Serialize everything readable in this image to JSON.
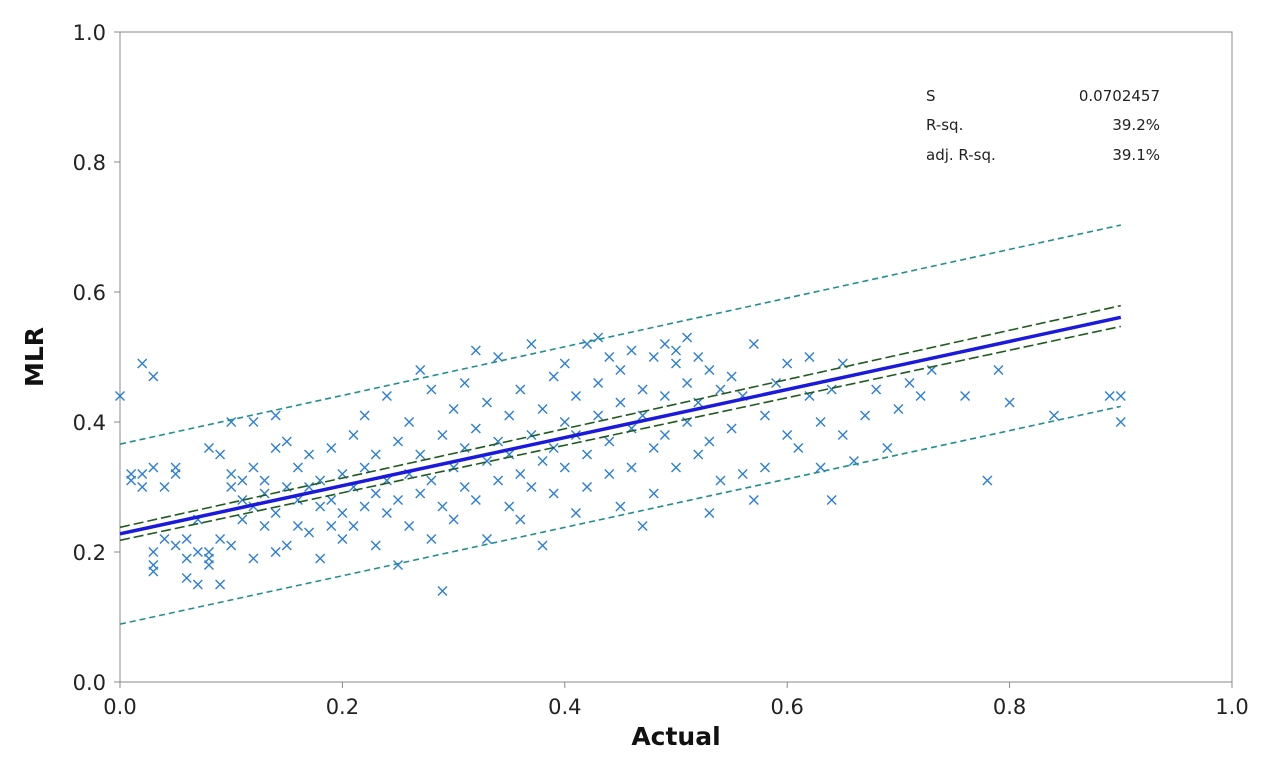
{
  "chart_data": {
    "type": "scatter",
    "title": "",
    "xlabel": "Actual",
    "ylabel": "MLR",
    "xlim": [
      0.0,
      1.0
    ],
    "ylim": [
      0.0,
      1.0
    ],
    "xticks": [
      0.0,
      0.2,
      0.4,
      0.6,
      0.8,
      1.0
    ],
    "yticks": [
      0.0,
      0.2,
      0.4,
      0.6,
      0.8,
      1.0
    ],
    "tick_labels": [
      "0.0",
      "0.2",
      "0.4",
      "0.6",
      "0.8",
      "1.0"
    ],
    "grid": false,
    "marker": "x",
    "colors": {
      "points": "#2b7fd4",
      "fit": "#1a1adb",
      "confidence": "#1e5c1e",
      "prediction": "#1f8f8f",
      "axis": "#888888"
    },
    "fit_line": {
      "x": [
        0.0,
        0.9
      ],
      "y": [
        0.228,
        0.561
      ]
    },
    "confidence_band": {
      "upper": {
        "x": [
          0.0,
          0.9
        ],
        "y": [
          0.238,
          0.579
        ]
      },
      "lower": {
        "x": [
          0.0,
          0.9
        ],
        "y": [
          0.218,
          0.547
        ]
      }
    },
    "prediction_band": {
      "upper": {
        "x": [
          0.0,
          0.9
        ],
        "y": [
          0.366,
          0.703
        ]
      },
      "lower": {
        "x": [
          0.0,
          0.9
        ],
        "y": [
          0.089,
          0.424
        ]
      }
    },
    "stats": [
      {
        "label": "S",
        "value": "0.0702457"
      },
      {
        "label": "R-sq.",
        "value": "39.2%"
      },
      {
        "label": "adj. R-sq.",
        "value": "39.1%"
      }
    ],
    "points": [
      [
        0.0,
        0.44
      ],
      [
        0.01,
        0.32
      ],
      [
        0.01,
        0.31
      ],
      [
        0.02,
        0.32
      ],
      [
        0.02,
        0.3
      ],
      [
        0.02,
        0.49
      ],
      [
        0.03,
        0.47
      ],
      [
        0.03,
        0.33
      ],
      [
        0.03,
        0.2
      ],
      [
        0.03,
        0.18
      ],
      [
        0.03,
        0.17
      ],
      [
        0.04,
        0.22
      ],
      [
        0.04,
        0.3
      ],
      [
        0.05,
        0.21
      ],
      [
        0.05,
        0.33
      ],
      [
        0.05,
        0.32
      ],
      [
        0.06,
        0.16
      ],
      [
        0.06,
        0.22
      ],
      [
        0.06,
        0.19
      ],
      [
        0.07,
        0.15
      ],
      [
        0.07,
        0.2
      ],
      [
        0.07,
        0.25
      ],
      [
        0.08,
        0.19
      ],
      [
        0.08,
        0.18
      ],
      [
        0.08,
        0.36
      ],
      [
        0.08,
        0.2
      ],
      [
        0.09,
        0.22
      ],
      [
        0.09,
        0.15
      ],
      [
        0.09,
        0.35
      ],
      [
        0.1,
        0.3
      ],
      [
        0.1,
        0.32
      ],
      [
        0.1,
        0.21
      ],
      [
        0.1,
        0.4
      ],
      [
        0.11,
        0.25
      ],
      [
        0.11,
        0.28
      ],
      [
        0.11,
        0.31
      ],
      [
        0.12,
        0.27
      ],
      [
        0.12,
        0.4
      ],
      [
        0.12,
        0.19
      ],
      [
        0.12,
        0.33
      ],
      [
        0.13,
        0.24
      ],
      [
        0.13,
        0.31
      ],
      [
        0.13,
        0.29
      ],
      [
        0.14,
        0.41
      ],
      [
        0.14,
        0.2
      ],
      [
        0.14,
        0.36
      ],
      [
        0.14,
        0.26
      ],
      [
        0.15,
        0.3
      ],
      [
        0.15,
        0.21
      ],
      [
        0.15,
        0.37
      ],
      [
        0.16,
        0.24
      ],
      [
        0.16,
        0.33
      ],
      [
        0.16,
        0.28
      ],
      [
        0.17,
        0.35
      ],
      [
        0.17,
        0.23
      ],
      [
        0.17,
        0.3
      ],
      [
        0.18,
        0.19
      ],
      [
        0.18,
        0.27
      ],
      [
        0.18,
        0.31
      ],
      [
        0.19,
        0.24
      ],
      [
        0.19,
        0.36
      ],
      [
        0.19,
        0.28
      ],
      [
        0.2,
        0.32
      ],
      [
        0.2,
        0.22
      ],
      [
        0.2,
        0.26
      ],
      [
        0.21,
        0.38
      ],
      [
        0.21,
        0.3
      ],
      [
        0.21,
        0.24
      ],
      [
        0.22,
        0.41
      ],
      [
        0.22,
        0.27
      ],
      [
        0.22,
        0.33
      ],
      [
        0.23,
        0.21
      ],
      [
        0.23,
        0.29
      ],
      [
        0.23,
        0.35
      ],
      [
        0.24,
        0.44
      ],
      [
        0.24,
        0.26
      ],
      [
        0.24,
        0.31
      ],
      [
        0.25,
        0.18
      ],
      [
        0.25,
        0.37
      ],
      [
        0.25,
        0.28
      ],
      [
        0.26,
        0.32
      ],
      [
        0.26,
        0.24
      ],
      [
        0.26,
        0.4
      ],
      [
        0.27,
        0.48
      ],
      [
        0.27,
        0.29
      ],
      [
        0.27,
        0.35
      ],
      [
        0.28,
        0.22
      ],
      [
        0.28,
        0.31
      ],
      [
        0.28,
        0.45
      ],
      [
        0.29,
        0.14
      ],
      [
        0.29,
        0.27
      ],
      [
        0.29,
        0.38
      ],
      [
        0.3,
        0.33
      ],
      [
        0.3,
        0.25
      ],
      [
        0.3,
        0.42
      ],
      [
        0.31,
        0.36
      ],
      [
        0.31,
        0.3
      ],
      [
        0.31,
        0.46
      ],
      [
        0.32,
        0.51
      ],
      [
        0.32,
        0.28
      ],
      [
        0.32,
        0.39
      ],
      [
        0.33,
        0.34
      ],
      [
        0.33,
        0.22
      ],
      [
        0.33,
        0.43
      ],
      [
        0.34,
        0.31
      ],
      [
        0.34,
        0.37
      ],
      [
        0.34,
        0.5
      ],
      [
        0.35,
        0.27
      ],
      [
        0.35,
        0.41
      ],
      [
        0.35,
        0.35
      ],
      [
        0.36,
        0.32
      ],
      [
        0.36,
        0.25
      ],
      [
        0.36,
        0.45
      ],
      [
        0.37,
        0.38
      ],
      [
        0.37,
        0.3
      ],
      [
        0.37,
        0.52
      ],
      [
        0.38,
        0.34
      ],
      [
        0.38,
        0.42
      ],
      [
        0.38,
        0.21
      ],
      [
        0.39,
        0.47
      ],
      [
        0.39,
        0.36
      ],
      [
        0.39,
        0.29
      ],
      [
        0.4,
        0.4
      ],
      [
        0.4,
        0.33
      ],
      [
        0.4,
        0.49
      ],
      [
        0.41,
        0.26
      ],
      [
        0.41,
        0.44
      ],
      [
        0.41,
        0.38
      ],
      [
        0.42,
        0.52
      ],
      [
        0.42,
        0.35
      ],
      [
        0.42,
        0.3
      ],
      [
        0.43,
        0.53
      ],
      [
        0.43,
        0.41
      ],
      [
        0.43,
        0.46
      ],
      [
        0.44,
        0.37
      ],
      [
        0.44,
        0.5
      ],
      [
        0.44,
        0.32
      ],
      [
        0.45,
        0.43
      ],
      [
        0.45,
        0.27
      ],
      [
        0.45,
        0.48
      ],
      [
        0.46,
        0.39
      ],
      [
        0.46,
        0.51
      ],
      [
        0.46,
        0.33
      ],
      [
        0.47,
        0.45
      ],
      [
        0.47,
        0.24
      ],
      [
        0.47,
        0.41
      ],
      [
        0.48,
        0.5
      ],
      [
        0.48,
        0.36
      ],
      [
        0.48,
        0.29
      ],
      [
        0.49,
        0.52
      ],
      [
        0.49,
        0.44
      ],
      [
        0.49,
        0.38
      ],
      [
        0.5,
        0.51
      ],
      [
        0.5,
        0.49
      ],
      [
        0.5,
        0.33
      ],
      [
        0.51,
        0.53
      ],
      [
        0.51,
        0.46
      ],
      [
        0.51,
        0.4
      ],
      [
        0.52,
        0.5
      ],
      [
        0.52,
        0.35
      ],
      [
        0.52,
        0.43
      ],
      [
        0.53,
        0.48
      ],
      [
        0.53,
        0.26
      ],
      [
        0.53,
        0.37
      ],
      [
        0.54,
        0.45
      ],
      [
        0.54,
        0.31
      ],
      [
        0.55,
        0.47
      ],
      [
        0.55,
        0.39
      ],
      [
        0.56,
        0.32
      ],
      [
        0.56,
        0.44
      ],
      [
        0.57,
        0.28
      ],
      [
        0.57,
        0.52
      ],
      [
        0.58,
        0.41
      ],
      [
        0.58,
        0.33
      ],
      [
        0.59,
        0.46
      ],
      [
        0.6,
        0.38
      ],
      [
        0.6,
        0.49
      ],
      [
        0.61,
        0.36
      ],
      [
        0.62,
        0.44
      ],
      [
        0.62,
        0.5
      ],
      [
        0.63,
        0.4
      ],
      [
        0.63,
        0.33
      ],
      [
        0.64,
        0.28
      ],
      [
        0.64,
        0.45
      ],
      [
        0.65,
        0.38
      ],
      [
        0.65,
        0.49
      ],
      [
        0.66,
        0.34
      ],
      [
        0.67,
        0.41
      ],
      [
        0.68,
        0.45
      ],
      [
        0.69,
        0.36
      ],
      [
        0.7,
        0.42
      ],
      [
        0.71,
        0.46
      ],
      [
        0.72,
        0.44
      ],
      [
        0.73,
        0.48
      ],
      [
        0.76,
        0.44
      ],
      [
        0.78,
        0.31
      ],
      [
        0.79,
        0.48
      ],
      [
        0.8,
        0.43
      ],
      [
        0.84,
        0.41
      ],
      [
        0.89,
        0.44
      ],
      [
        0.9,
        0.44
      ],
      [
        0.9,
        0.4
      ]
    ]
  }
}
